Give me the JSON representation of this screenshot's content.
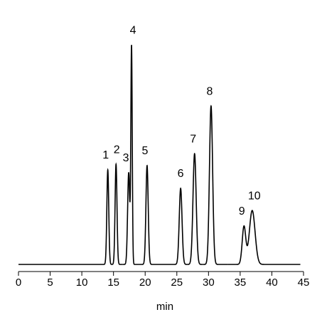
{
  "chart_data": {
    "type": "chromatogram",
    "x_label": "min",
    "xlim": [
      0,
      45
    ],
    "xticks": [
      0,
      5,
      10,
      15,
      20,
      25,
      30,
      35,
      40,
      45
    ],
    "trace_end": 44.5,
    "color": "#000000",
    "peaks": {
      "labels": [
        "1",
        "2",
        "3",
        "4",
        "5",
        "6",
        "7",
        "8",
        "9",
        "10"
      ],
      "x": [
        14.1,
        15.4,
        17.4,
        17.85,
        20.3,
        25.6,
        27.8,
        30.4,
        35.6,
        36.9
      ],
      "heights": [
        43.6,
        46.2,
        42.3,
        100,
        45.6,
        35.1,
        51.1,
        73.1,
        17.4,
        24.9
      ],
      "widths": [
        0.15,
        0.15,
        0.17,
        0.11,
        0.18,
        0.22,
        0.25,
        0.25,
        0.28,
        0.45
      ]
    }
  }
}
